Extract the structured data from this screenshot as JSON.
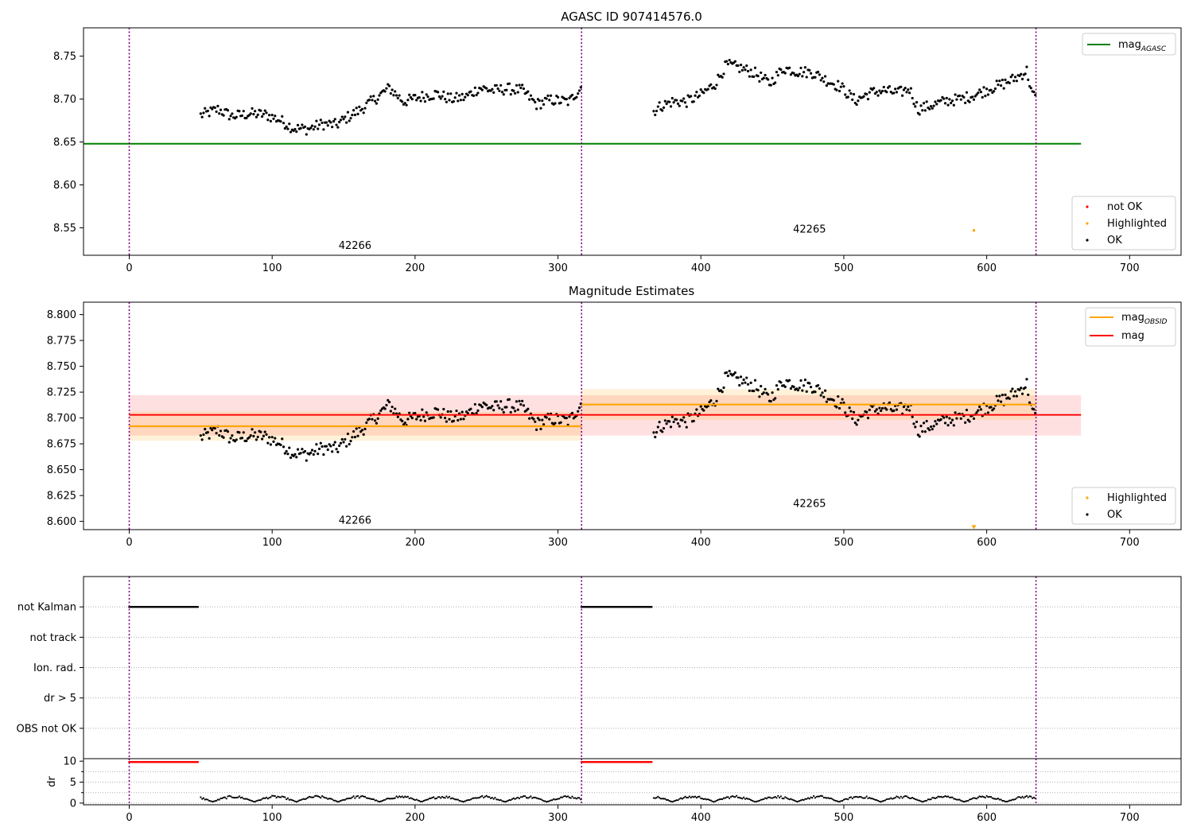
{
  "chart_data": [
    {
      "id": "p1",
      "type": "scatter",
      "title": "AGASC ID 907414576.0",
      "xlim": [
        -32,
        736
      ],
      "ylim": [
        8.518,
        8.783
      ],
      "x_ticks": [
        0,
        100,
        200,
        300,
        400,
        500,
        600,
        700
      ],
      "y_ticks": [
        8.55,
        8.6,
        8.65,
        8.7,
        8.75
      ],
      "y_tick_labels": [
        "8.55",
        "8.60",
        "8.65",
        "8.70",
        "8.75"
      ],
      "obsid_boundaries": [
        0,
        316.5,
        634.5
      ],
      "obsid_labels": [
        {
          "text": "42266",
          "x": 158,
          "y": 8.529
        },
        {
          "text": "42265",
          "x": 476,
          "y": 8.548
        }
      ],
      "lines": [
        {
          "name": "mag_AGASC",
          "y": 8.648,
          "x0": -32,
          "x1": 666,
          "color": "#008000"
        }
      ],
      "highlighted_points": [
        {
          "x": 591,
          "y": 8.547
        }
      ],
      "legend_top": [
        {
          "label": "mag",
          "sub": "AGASC",
          "color": "#008000",
          "kind": "line"
        }
      ],
      "legend_bottom": [
        {
          "label": "not OK",
          "color": "#ff0000",
          "kind": "dot"
        },
        {
          "label": "Highlighted",
          "color": "#ffa500",
          "kind": "dot"
        },
        {
          "label": "OK",
          "color": "#000000",
          "kind": "dot"
        }
      ]
    },
    {
      "id": "p2",
      "type": "scatter",
      "title": "Magnitude Estimates",
      "xlim": [
        -32,
        736
      ],
      "ylim": [
        8.592,
        8.812
      ],
      "x_ticks": [
        0,
        100,
        200,
        300,
        400,
        500,
        600,
        700
      ],
      "y_ticks": [
        8.6,
        8.625,
        8.65,
        8.675,
        8.7,
        8.725,
        8.75,
        8.775,
        8.8
      ],
      "y_tick_labels": [
        "8.600",
        "8.625",
        "8.650",
        "8.675",
        "8.700",
        "8.725",
        "8.750",
        "8.775",
        "8.800"
      ],
      "obsid_boundaries": [
        0,
        316.5,
        634.5
      ],
      "obsid_labels": [
        {
          "text": "42266",
          "x": 158,
          "y": 8.601
        },
        {
          "text": "42265",
          "x": 476,
          "y": 8.617
        }
      ],
      "bands": [
        {
          "name": "mag",
          "x0": 0,
          "x1": 666,
          "y0": 8.683,
          "y1": 8.722,
          "center": 8.703,
          "color": "#ff0000"
        },
        {
          "name": "mag_OBSID 42266",
          "x0": 0,
          "x1": 316.5,
          "y0": 8.678,
          "y1": 8.706,
          "center": 8.692,
          "color": "#ffa500"
        },
        {
          "name": "mag_OBSID 42265",
          "x0": 316.5,
          "x1": 634.5,
          "y0": 8.698,
          "y1": 8.728,
          "center": 8.713,
          "color": "#ffa500"
        }
      ],
      "highlighted_points": [
        {
          "x": 591,
          "y": 8.594
        }
      ],
      "legend_top": [
        {
          "label": "mag",
          "sub": "OBSID",
          "color": "#ffa500",
          "kind": "line"
        },
        {
          "label": "mag",
          "sub": "",
          "color": "#ff0000",
          "kind": "line"
        }
      ],
      "legend_bottom": [
        {
          "label": "Highlighted",
          "color": "#ffa500",
          "kind": "dot"
        },
        {
          "label": "OK",
          "color": "#000000",
          "kind": "dot"
        }
      ]
    },
    {
      "id": "p3",
      "type": "flags",
      "xlim": [
        -32,
        736
      ],
      "categories": [
        "not Kalman",
        "not track",
        "Ion. rad.",
        "dr > 5",
        "OBS not OK"
      ],
      "flag_ranges": [
        {
          "category": "not Kalman",
          "x0": 0,
          "x1": 48
        },
        {
          "category": "not Kalman",
          "x0": 316.5,
          "x1": 366
        }
      ]
    },
    {
      "id": "p4",
      "type": "scatter",
      "ylabel": "dr",
      "xlim": [
        -32,
        736
      ],
      "ylim": [
        -0.4,
        10.6
      ],
      "x_ticks": [
        0,
        100,
        200,
        300,
        400,
        500,
        600,
        700
      ],
      "x_tick_labels": [
        "0",
        "100",
        "200",
        "300",
        "400",
        "500",
        "600",
        "700"
      ],
      "y_ticks": [
        0,
        5,
        10
      ],
      "y_tick_labels": [
        "0",
        "5",
        "10"
      ],
      "y_minor_ticks": [
        2.5,
        7.5
      ],
      "clipped_ranges": [
        {
          "x0": 0,
          "x1": 48,
          "y": 9.8,
          "color": "#ff0000"
        },
        {
          "x0": 316.5,
          "x1": 366,
          "y": 9.8,
          "color": "#ff0000"
        }
      ],
      "dr_typical_range": [
        0.3,
        1.8
      ]
    }
  ],
  "series_segments": {
    "mag_obs_42266": [
      [
        50,
        8.681
      ],
      [
        62,
        8.688
      ],
      [
        72,
        8.68
      ],
      [
        85,
        8.683
      ],
      [
        95,
        8.682
      ],
      [
        105,
        8.676
      ],
      [
        115,
        8.666
      ],
      [
        125,
        8.665
      ],
      [
        135,
        8.671
      ],
      [
        145,
        8.67
      ],
      [
        152,
        8.678
      ],
      [
        162,
        8.688
      ],
      [
        172,
        8.7
      ],
      [
        182,
        8.713
      ],
      [
        192,
        8.697
      ],
      [
        205,
        8.703
      ],
      [
        215,
        8.706
      ],
      [
        225,
        8.7
      ],
      [
        235,
        8.702
      ],
      [
        245,
        8.713
      ],
      [
        255,
        8.71
      ],
      [
        265,
        8.712
      ],
      [
        275,
        8.71
      ],
      [
        285,
        8.694
      ],
      [
        295,
        8.699
      ],
      [
        308,
        8.697
      ],
      [
        316,
        8.714
      ]
    ],
    "mag_obs_42265": [
      [
        367,
        8.686
      ],
      [
        372,
        8.692
      ],
      [
        380,
        8.697
      ],
      [
        390,
        8.697
      ],
      [
        400,
        8.705
      ],
      [
        410,
        8.718
      ],
      [
        418,
        8.74
      ],
      [
        428,
        8.736
      ],
      [
        438,
        8.73
      ],
      [
        448,
        8.718
      ],
      [
        458,
        8.736
      ],
      [
        468,
        8.732
      ],
      [
        478,
        8.731
      ],
      [
        488,
        8.722
      ],
      [
        498,
        8.714
      ],
      [
        508,
        8.698
      ],
      [
        518,
        8.707
      ],
      [
        528,
        8.71
      ],
      [
        538,
        8.707
      ],
      [
        546,
        8.712
      ],
      [
        552,
        8.688
      ],
      [
        562,
        8.693
      ],
      [
        572,
        8.698
      ],
      [
        582,
        8.7
      ],
      [
        592,
        8.705
      ],
      [
        602,
        8.712
      ],
      [
        612,
        8.718
      ],
      [
        622,
        8.726
      ],
      [
        628,
        8.733
      ],
      [
        632,
        8.705
      ],
      [
        634,
        8.703
      ]
    ]
  }
}
